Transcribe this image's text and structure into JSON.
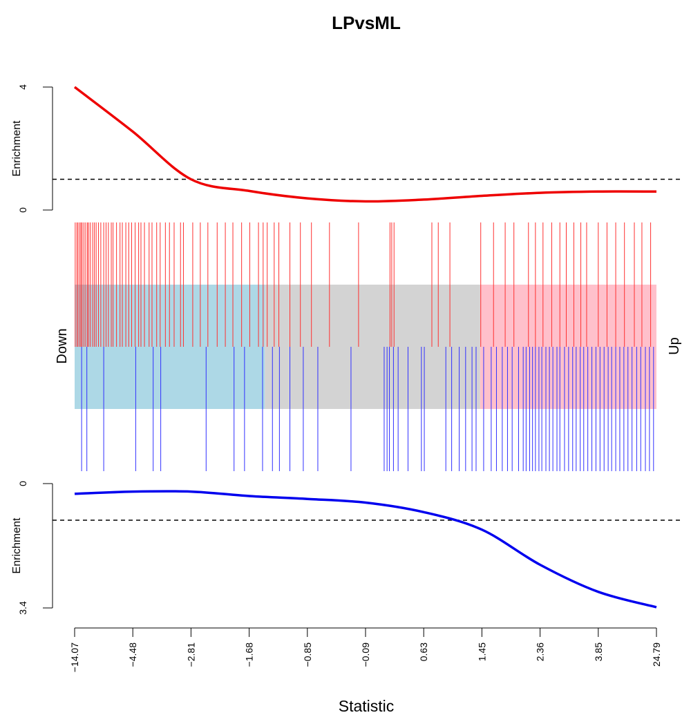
{
  "chart_data": {
    "type": "barcode",
    "title": "LPvsML",
    "xlabel": "Statistic",
    "x_ticks": [
      "−14.07",
      "−4.48",
      "−2.81",
      "−1.68",
      "−0.85",
      "−0.09",
      "0.63",
      "1.45",
      "2.36",
      "3.85",
      "24.79"
    ],
    "down_label": "Down",
    "up_label": "Up",
    "up_enrichment": {
      "ylabel": "Enrichment",
      "ylim": [
        0,
        4
      ],
      "ticks": [
        "0",
        "4"
      ],
      "reference": 1,
      "x_rank": [
        0,
        0.1,
        0.2,
        0.3,
        0.4,
        0.5,
        0.6,
        0.7,
        0.8,
        0.9,
        1.0
      ],
      "values": [
        4.0,
        2.55,
        1.0,
        0.62,
        0.38,
        0.28,
        0.34,
        0.46,
        0.56,
        0.6,
        0.6
      ]
    },
    "down_enrichment": {
      "ylabel": "Enrichment",
      "ylim": [
        0,
        3.4
      ],
      "ticks": [
        "0",
        "3.4"
      ],
      "reference": 1,
      "x_rank": [
        0,
        0.1,
        0.2,
        0.3,
        0.4,
        0.5,
        0.6,
        0.7,
        0.8,
        0.9,
        1.0
      ],
      "values": [
        0.28,
        0.22,
        0.22,
        0.34,
        0.42,
        0.52,
        0.78,
        1.26,
        2.22,
        2.96,
        3.38
      ]
    },
    "regions": [
      {
        "name": "Down",
        "from": 0.0,
        "to": 0.327,
        "color": "#add8e6"
      },
      {
        "name": "Middle",
        "from": 0.327,
        "to": 0.697,
        "color": "#d3d3d3"
      },
      {
        "name": "Up",
        "from": 0.697,
        "to": 1.0,
        "color": "#ffc0cb"
      }
    ],
    "up_set_ranks": [
      0.001,
      0.004,
      0.006,
      0.009,
      0.011,
      0.013,
      0.016,
      0.019,
      0.022,
      0.024,
      0.027,
      0.031,
      0.034,
      0.037,
      0.041,
      0.045,
      0.05,
      0.054,
      0.058,
      0.063,
      0.066,
      0.072,
      0.078,
      0.082,
      0.088,
      0.093,
      0.098,
      0.104,
      0.11,
      0.114,
      0.12,
      0.128,
      0.133,
      0.141,
      0.147,
      0.156,
      0.163,
      0.171,
      0.182,
      0.187,
      0.203,
      0.216,
      0.229,
      0.245,
      0.259,
      0.272,
      0.287,
      0.301,
      0.316,
      0.324,
      0.331,
      0.343,
      0.351,
      0.37,
      0.388,
      0.407,
      0.438,
      0.488,
      0.542,
      0.545,
      0.549,
      0.614,
      0.625,
      0.645,
      0.698,
      0.72,
      0.74,
      0.755,
      0.78,
      0.792,
      0.805,
      0.82,
      0.834,
      0.845,
      0.858,
      0.87,
      0.88,
      0.9,
      0.915,
      0.93,
      0.945,
      0.962,
      0.975,
      0.99
    ],
    "down_set_ranks": [
      0.012,
      0.021,
      0.05,
      0.105,
      0.135,
      0.148,
      0.226,
      0.274,
      0.292,
      0.323,
      0.34,
      0.352,
      0.37,
      0.393,
      0.418,
      0.475,
      0.532,
      0.537,
      0.541,
      0.548,
      0.556,
      0.573,
      0.596,
      0.601,
      0.638,
      0.648,
      0.661,
      0.672,
      0.683,
      0.69,
      0.703,
      0.716,
      0.725,
      0.735,
      0.744,
      0.752,
      0.763,
      0.771,
      0.776,
      0.782,
      0.787,
      0.792,
      0.798,
      0.803,
      0.81,
      0.816,
      0.822,
      0.829,
      0.834,
      0.842,
      0.849,
      0.856,
      0.862,
      0.869,
      0.875,
      0.882,
      0.889,
      0.896,
      0.903,
      0.91,
      0.917,
      0.923,
      0.93,
      0.937,
      0.944,
      0.951,
      0.958,
      0.966,
      0.973,
      0.981,
      0.988,
      0.995
    ]
  }
}
